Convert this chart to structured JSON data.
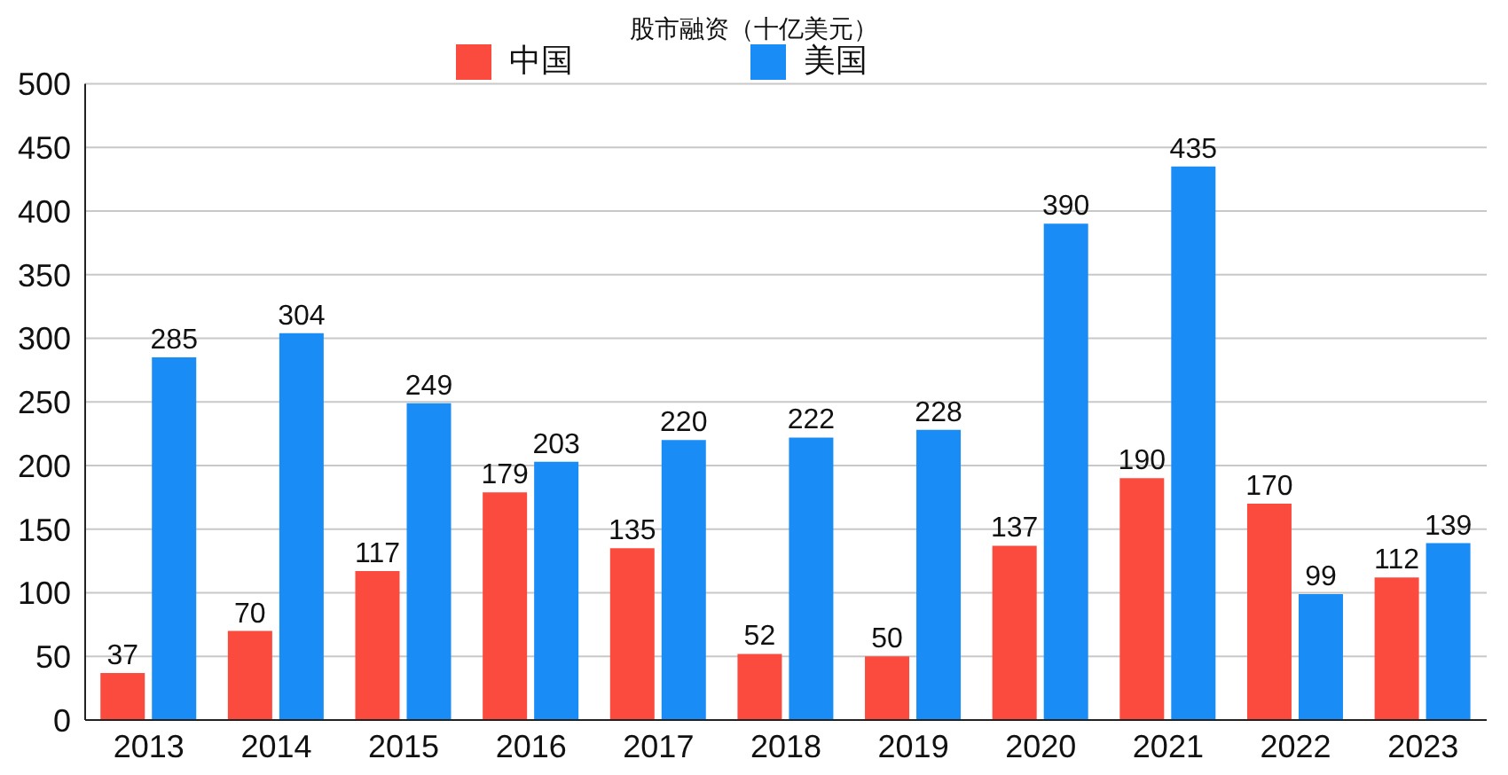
{
  "chart_data": {
    "type": "bar",
    "title": "股市融资（十亿美元）",
    "categories": [
      "2013",
      "2014",
      "2015",
      "2016",
      "2017",
      "2018",
      "2019",
      "2020",
      "2021",
      "2022",
      "2023"
    ],
    "series": [
      {
        "name": "中国",
        "color": "#fb4b3e",
        "values": [
          37,
          70,
          117,
          179,
          135,
          52,
          50,
          137,
          190,
          170,
          112
        ]
      },
      {
        "name": "美国",
        "color": "#1a8cf5",
        "values": [
          285,
          304,
          249,
          203,
          220,
          222,
          228,
          390,
          435,
          99,
          139
        ]
      }
    ],
    "ylim": [
      0,
      500
    ],
    "yticks": [
      0,
      50,
      100,
      150,
      200,
      250,
      300,
      350,
      400,
      450,
      500
    ],
    "grid": "y",
    "legend": "top",
    "data_labels": true
  }
}
